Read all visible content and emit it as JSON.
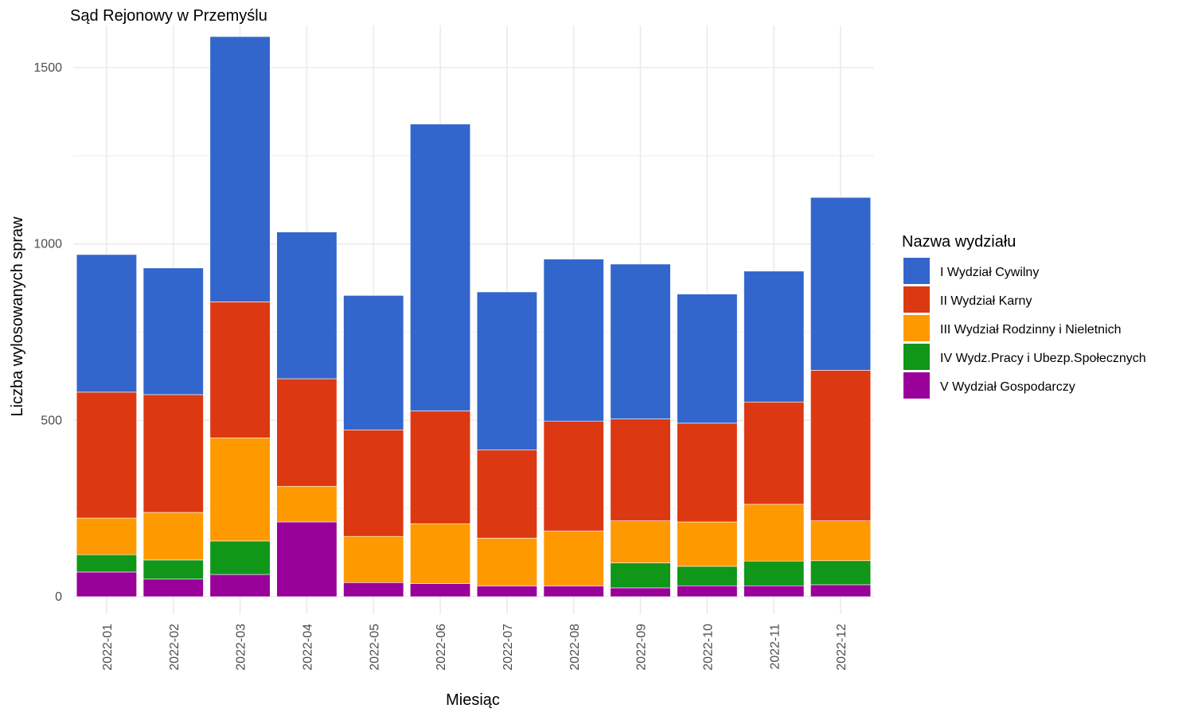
{
  "chart_data": {
    "type": "bar",
    "stacked": true,
    "title": "Sąd Rejonowy w Przemyślu",
    "xlabel": "Miesiąc",
    "ylabel": "Liczba wylosowanych spraw",
    "ylim": [
      0,
      1600
    ],
    "y_ticks": [
      0,
      500,
      1000,
      1500
    ],
    "grid": true,
    "legend_title": "Nazwa wydziału",
    "legend_position": "right",
    "categories": [
      "2022-01",
      "2022-02",
      "2022-03",
      "2022-04",
      "2022-05",
      "2022-06",
      "2022-07",
      "2022-08",
      "2022-09",
      "2022-10",
      "2022-11",
      "2022-12"
    ],
    "series": [
      {
        "name": "V Wydział Gospodarczy",
        "color": "#990099",
        "values": [
          70,
          50,
          63,
          212,
          40,
          37,
          30,
          30,
          25,
          31,
          31,
          34
        ]
      },
      {
        "name": "IV Wydz.Pracy i Ubezp.Społecznych",
        "color": "#109618",
        "values": [
          49,
          54,
          95,
          0,
          0,
          0,
          0,
          0,
          71,
          55,
          70,
          68
        ]
      },
      {
        "name": "III Wydział Rodzinny i Nieletnich",
        "color": "#FF9900",
        "values": [
          104,
          135,
          292,
          101,
          131,
          170,
          136,
          156,
          119,
          126,
          161,
          113
        ]
      },
      {
        "name": "II Wydział Karny",
        "color": "#DC3912",
        "values": [
          357,
          334,
          386,
          305,
          302,
          320,
          250,
          312,
          289,
          280,
          290,
          427
        ]
      },
      {
        "name": "I Wydział Cywilny",
        "color": "#3366CC",
        "values": [
          390,
          359,
          752,
          416,
          381,
          813,
          448,
          459,
          439,
          366,
          371,
          490
        ]
      }
    ],
    "legend_order": [
      "I Wydział Cywilny",
      "II Wydział Karny",
      "III Wydział Rodzinny i Nieletnich",
      "IV Wydz.Pracy i Ubezp.Społecznych",
      "V Wydział Gospodarczy"
    ]
  }
}
